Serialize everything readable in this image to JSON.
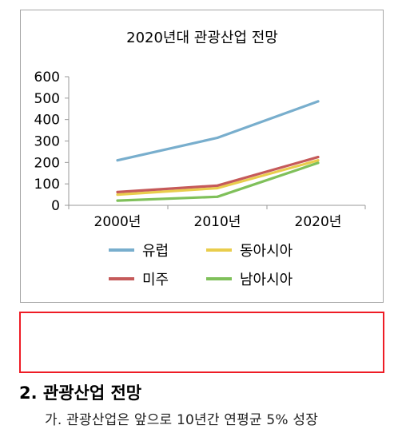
{
  "chart_data": {
    "type": "line",
    "title": "2020년대 관광산업 전망",
    "categories": [
      "2000년",
      "2010년",
      "2020년"
    ],
    "ylim": [
      0,
      600
    ],
    "y_ticks": [
      "0",
      "100",
      "200",
      "300",
      "400",
      "500",
      "600"
    ],
    "grid": false,
    "legend_position": "bottom",
    "series": [
      {
        "name": "유럽",
        "values": [
          210,
          315,
          485
        ],
        "color": "#78aecd"
      },
      {
        "name": "동아시아",
        "values": [
          50,
          80,
          210
        ],
        "color": "#e9cd4c"
      },
      {
        "name": "미주",
        "values": [
          62,
          92,
          225
        ],
        "color": "#c55a5a"
      },
      {
        "name": "남아시아",
        "values": [
          22,
          40,
          198
        ],
        "color": "#7fc05a"
      }
    ]
  },
  "document": {
    "section_heading": "2. 관광산업 전망",
    "body_text": "가. 관광산업은 앞으로 10년간 연평균 5% 성장"
  }
}
